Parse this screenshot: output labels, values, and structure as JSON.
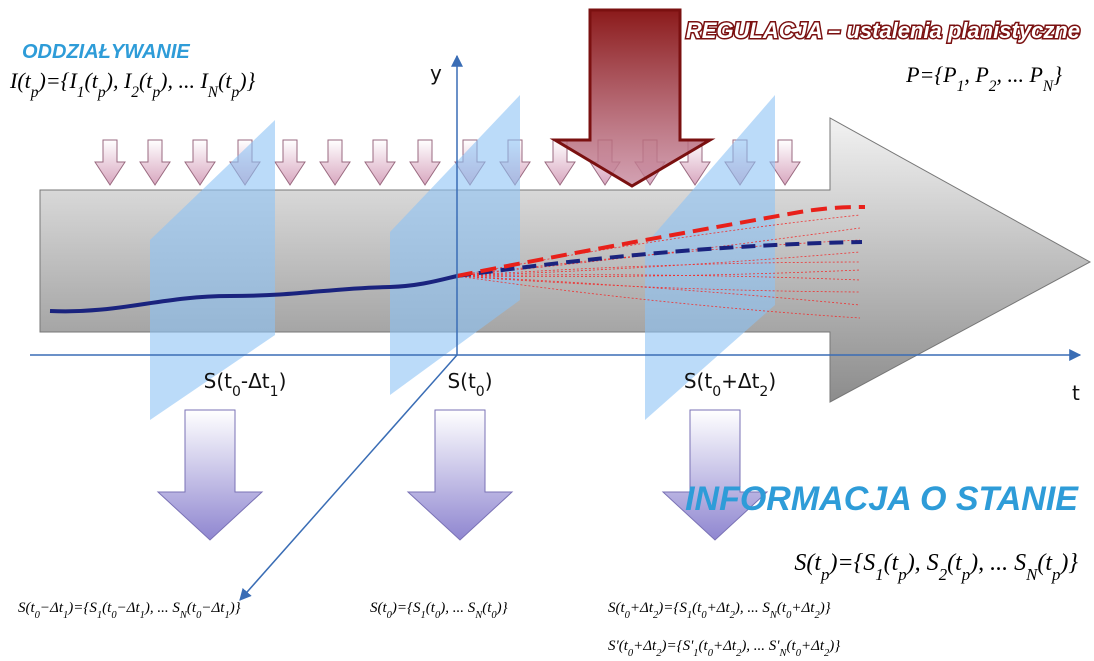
{
  "influence": {
    "title": "ODDZIAŁYWANIE",
    "formula": [
      "I(t",
      "p",
      ")={I",
      "1",
      "(t",
      "p",
      "), I",
      "2",
      "(t",
      "p",
      "), ... I",
      "N",
      "(t",
      "p",
      ")}"
    ]
  },
  "regulation": {
    "title": "REGULACJA – ustalenia planistyczne",
    "formula": [
      "P={P",
      "1",
      ", P",
      "2",
      ", ... P",
      "N",
      "}"
    ]
  },
  "axes": {
    "y": "y",
    "t": "t"
  },
  "sections": [
    {
      "label": [
        "S(t",
        "0",
        "-Δt",
        "1",
        ")"
      ],
      "formulas": [
        [
          "S(t",
          "0",
          "−Δt",
          "1",
          ")={S",
          "1",
          "(t",
          "0",
          "−Δt",
          "1",
          "), ... S",
          "N",
          "(t",
          "0",
          "−Δt",
          "1",
          ")}"
        ]
      ]
    },
    {
      "label": [
        "S(t",
        "0",
        ")"
      ],
      "formulas": [
        [
          "S(t",
          "0",
          ")={S",
          "1",
          "(t",
          "0",
          "), ... S",
          "N",
          "(t",
          "0",
          ")}"
        ]
      ]
    },
    {
      "label": [
        "S(t",
        "0",
        "+Δt",
        "2",
        ")"
      ],
      "formulas": [
        [
          "S(t",
          "0",
          "+Δt",
          "2",
          ")={S",
          "1",
          "(t",
          "0",
          "+Δt",
          "2",
          "), ... S",
          "N",
          "(t",
          "0",
          "+Δt",
          "2",
          ")}"
        ],
        [
          "S'(t",
          "0",
          "+Δt",
          "2",
          ")={S'",
          "1",
          "(t",
          "0",
          "+Δt",
          "2",
          "), ... S'",
          "N",
          "(t",
          "0",
          "+Δt",
          "2",
          ")}"
        ]
      ]
    }
  ],
  "state": {
    "title": "INFORMACJA O STANIE",
    "formula": [
      "S(t",
      "p",
      ")={S",
      "1",
      "(t",
      "p",
      "), S",
      "2",
      "(t",
      "p",
      "), ... S",
      "N",
      "(t",
      "p",
      ")}"
    ]
  }
}
